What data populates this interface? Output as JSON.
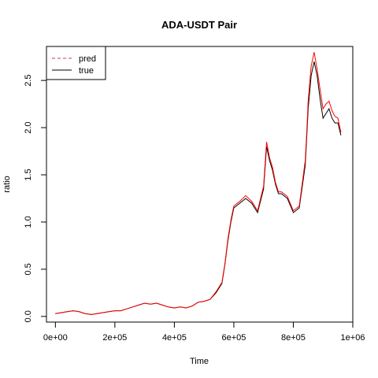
{
  "chart_data": {
    "type": "line",
    "title": "ADA-USDT Pair",
    "xlabel": "Time",
    "ylabel": "ratio",
    "xlim": [
      -30000,
      1000000
    ],
    "ylim": [
      -0.06,
      2.86
    ],
    "x_ticks": [
      0,
      200000,
      400000,
      600000,
      800000,
      1000000
    ],
    "x_tick_labels": [
      "0e+00",
      "2e+05",
      "4e+05",
      "6e+05",
      "8e+05",
      "1e+06"
    ],
    "y_ticks": [
      0.0,
      0.5,
      1.0,
      1.5,
      2.0,
      2.5
    ],
    "y_tick_labels": [
      "0.0",
      "0.5",
      "1.0",
      "1.5",
      "2.0",
      "2.5"
    ],
    "grid": false,
    "legend_position": "top-left",
    "legend": [
      {
        "label": "pred",
        "color": "#c2405a",
        "style": "dashed"
      },
      {
        "label": "true",
        "color": "#000000",
        "style": "solid"
      }
    ],
    "series": [
      {
        "name": "true",
        "color": "#000000",
        "x": [
          0,
          20000,
          40000,
          60000,
          80000,
          100000,
          120000,
          140000,
          160000,
          180000,
          200000,
          220000,
          240000,
          260000,
          280000,
          300000,
          320000,
          340000,
          360000,
          380000,
          400000,
          420000,
          440000,
          460000,
          480000,
          500000,
          520000,
          540000,
          560000,
          570000,
          580000,
          590000,
          600000,
          620000,
          640000,
          660000,
          680000,
          700000,
          710000,
          720000,
          730000,
          740000,
          750000,
          760000,
          780000,
          800000,
          820000,
          840000,
          845000,
          850000,
          860000,
          870000,
          880000,
          890000,
          900000,
          910000,
          920000,
          930000,
          940000,
          950000,
          960000
        ],
        "y": [
          0.03,
          0.04,
          0.05,
          0.06,
          0.05,
          0.03,
          0.02,
          0.03,
          0.04,
          0.05,
          0.06,
          0.06,
          0.08,
          0.1,
          0.12,
          0.14,
          0.13,
          0.14,
          0.12,
          0.1,
          0.09,
          0.1,
          0.09,
          0.11,
          0.15,
          0.16,
          0.18,
          0.25,
          0.35,
          0.55,
          0.8,
          1.0,
          1.15,
          1.2,
          1.25,
          1.2,
          1.1,
          1.35,
          1.8,
          1.65,
          1.55,
          1.4,
          1.3,
          1.3,
          1.25,
          1.1,
          1.15,
          1.6,
          1.9,
          2.2,
          2.55,
          2.7,
          2.55,
          2.3,
          2.1,
          2.15,
          2.2,
          2.1,
          2.05,
          2.05,
          1.92
        ]
      },
      {
        "name": "pred",
        "color": "#ff0000",
        "x": [
          0,
          20000,
          40000,
          60000,
          80000,
          100000,
          120000,
          140000,
          160000,
          180000,
          200000,
          220000,
          240000,
          260000,
          280000,
          300000,
          320000,
          340000,
          360000,
          380000,
          400000,
          420000,
          440000,
          460000,
          480000,
          500000,
          520000,
          540000,
          560000,
          570000,
          580000,
          590000,
          600000,
          620000,
          640000,
          660000,
          680000,
          700000,
          710000,
          720000,
          730000,
          740000,
          750000,
          760000,
          780000,
          800000,
          820000,
          840000,
          845000,
          850000,
          860000,
          870000,
          880000,
          890000,
          900000,
          910000,
          920000,
          930000,
          940000,
          950000,
          960000
        ],
        "y": [
          0.03,
          0.04,
          0.05,
          0.06,
          0.05,
          0.03,
          0.02,
          0.03,
          0.04,
          0.05,
          0.06,
          0.06,
          0.08,
          0.1,
          0.12,
          0.14,
          0.13,
          0.14,
          0.12,
          0.1,
          0.09,
          0.1,
          0.09,
          0.11,
          0.15,
          0.16,
          0.18,
          0.26,
          0.36,
          0.56,
          0.82,
          1.02,
          1.17,
          1.22,
          1.28,
          1.22,
          1.12,
          1.38,
          1.85,
          1.68,
          1.58,
          1.42,
          1.32,
          1.32,
          1.27,
          1.12,
          1.17,
          1.65,
          1.95,
          2.28,
          2.65,
          2.8,
          2.62,
          2.4,
          2.2,
          2.25,
          2.28,
          2.18,
          2.12,
          2.1,
          1.95
        ]
      }
    ]
  }
}
